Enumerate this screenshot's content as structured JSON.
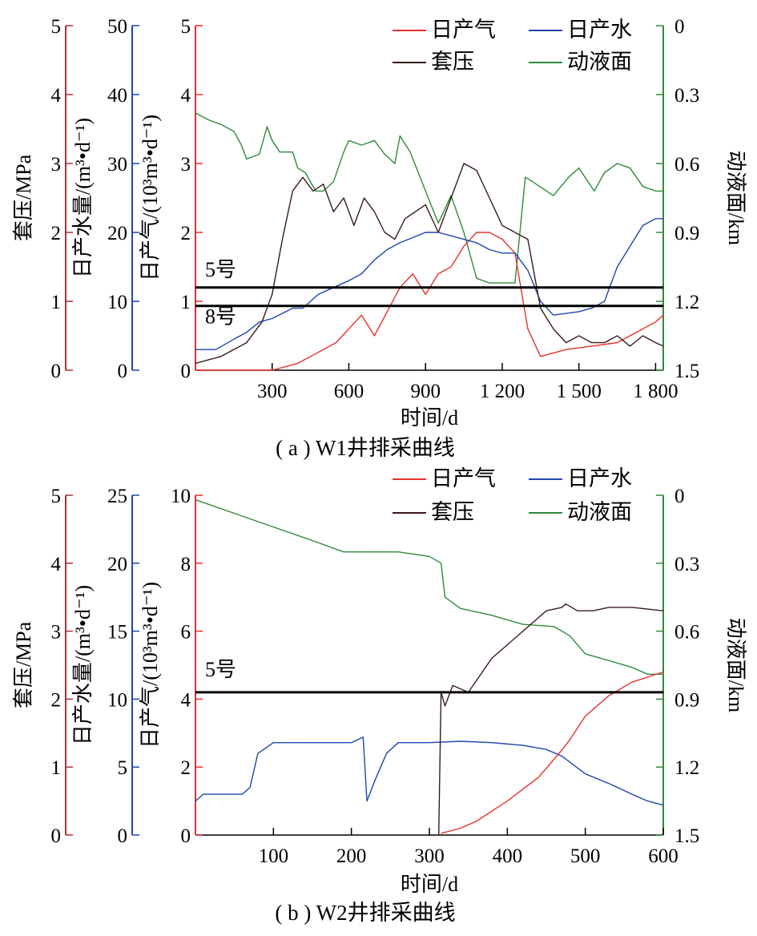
{
  "colors": {
    "gas": "#e8312a",
    "water": "#1f45b0",
    "casing": "#3a1a1a",
    "fluid": "#2e8b3a",
    "casing_axis": "#b03030",
    "water_axis": "#1f45b0",
    "fluid_axis": "#2e8b3a",
    "marker": "#000000"
  },
  "chart_data": [
    {
      "type": "line",
      "caption": "( a ) W1井排采曲线",
      "xlabel": "时间/d",
      "x_ticks": [
        "300",
        "600",
        "900",
        "1 200",
        "1 500",
        "1 800"
      ],
      "xlim": [
        0,
        1830
      ],
      "legend": {
        "gas": "日产气",
        "water": "日产水",
        "casing": "套压",
        "fluid": "动液面",
        "position": "top-right"
      },
      "axes": {
        "casing": {
          "label": "套压/MPa",
          "range": [
            0,
            5
          ],
          "ticks": [
            "0",
            "1",
            "2",
            "3",
            "4",
            "5"
          ]
        },
        "water": {
          "label": "日产水量/(m³•d⁻¹)",
          "range": [
            0,
            50
          ],
          "ticks": [
            "0",
            "10",
            "20",
            "30",
            "40",
            "50"
          ]
        },
        "gas": {
          "label": "日产气/(10³m³•d⁻¹)",
          "range": [
            0,
            5
          ],
          "ticks": [
            "0",
            "1",
            "2",
            "3",
            "4",
            "5"
          ]
        },
        "fluid": {
          "label": "动液面/km",
          "range": [
            0,
            1.5
          ],
          "inverted": true,
          "ticks": [
            "0",
            "0.3",
            "0.6",
            "0.9",
            "1.2",
            "1.5"
          ]
        }
      },
      "markers": [
        {
          "label": "5号",
          "depth_km": 1.14
        },
        {
          "label": "8号",
          "depth_km": 1.22
        }
      ],
      "series": [
        {
          "key": "fluid",
          "x": [
            0,
            50,
            100,
            150,
            180,
            200,
            250,
            280,
            300,
            330,
            380,
            400,
            430,
            470,
            500,
            540,
            580,
            600,
            650,
            700,
            740,
            780,
            800,
            840,
            900,
            950,
            1000,
            1050,
            1100,
            1150,
            1200,
            1250,
            1290,
            1320,
            1400,
            1460,
            1500,
            1560,
            1600,
            1650,
            1700,
            1750,
            1800,
            1830
          ],
          "y": [
            0.38,
            0.41,
            0.43,
            0.46,
            0.52,
            0.58,
            0.56,
            0.44,
            0.5,
            0.55,
            0.55,
            0.62,
            0.64,
            0.72,
            0.72,
            0.68,
            0.55,
            0.5,
            0.52,
            0.5,
            0.56,
            0.6,
            0.48,
            0.55,
            0.72,
            0.86,
            0.74,
            0.9,
            1.1,
            1.12,
            1.12,
            1.12,
            0.66,
            0.68,
            0.74,
            0.66,
            0.62,
            0.72,
            0.64,
            0.6,
            0.62,
            0.7,
            0.72,
            0.72
          ]
        },
        {
          "key": "gas",
          "x": [
            0,
            100,
            300,
            400,
            500,
            550,
            600,
            650,
            700,
            800,
            850,
            900,
            950,
            1000,
            1050,
            1100,
            1150,
            1200,
            1250,
            1300,
            1350,
            1450,
            1550,
            1650,
            1700,
            1750,
            1800,
            1830
          ],
          "y": [
            0,
            0,
            0,
            0.1,
            0.3,
            0.4,
            0.6,
            0.8,
            0.5,
            1.2,
            1.4,
            1.1,
            1.4,
            1.5,
            1.8,
            2.0,
            2.0,
            1.9,
            1.7,
            0.6,
            0.2,
            0.3,
            0.35,
            0.4,
            0.5,
            0.6,
            0.7,
            0.8
          ]
        },
        {
          "key": "water",
          "x": [
            0,
            80,
            150,
            200,
            250,
            300,
            380,
            420,
            480,
            540,
            600,
            650,
            700,
            750,
            800,
            900,
            950,
            1000,
            1050,
            1100,
            1150,
            1200,
            1250,
            1300,
            1350,
            1400,
            1500,
            1550,
            1600,
            1650,
            1700,
            1750,
            1800,
            1830
          ],
          "y": [
            3,
            3,
            4.5,
            5.5,
            7,
            7.5,
            9,
            9,
            11,
            12,
            13,
            14,
            16,
            17.5,
            18.5,
            20,
            20,
            19.5,
            19,
            18.5,
            17.5,
            17,
            17,
            14.5,
            10,
            8,
            8.5,
            9,
            10,
            15,
            18,
            21,
            22,
            22
          ]
        },
        {
          "key": "casing",
          "x": [
            0,
            100,
            200,
            260,
            300,
            340,
            380,
            420,
            460,
            500,
            540,
            580,
            620,
            660,
            700,
            740,
            780,
            820,
            860,
            900,
            950,
            1000,
            1050,
            1100,
            1150,
            1200,
            1250,
            1300,
            1350,
            1400,
            1450,
            1500,
            1550,
            1600,
            1650,
            1700,
            1750,
            1800,
            1830
          ],
          "y": [
            0.1,
            0.2,
            0.4,
            0.7,
            1.1,
            1.9,
            2.6,
            2.8,
            2.6,
            2.7,
            2.3,
            2.5,
            2.1,
            2.5,
            2.3,
            2.0,
            1.9,
            2.2,
            2.3,
            2.4,
            2.0,
            2.5,
            3.0,
            2.9,
            2.5,
            2.1,
            2.0,
            1.9,
            0.9,
            0.6,
            0.4,
            0.5,
            0.4,
            0.4,
            0.5,
            0.35,
            0.5,
            0.4,
            0.35
          ]
        }
      ]
    },
    {
      "type": "line",
      "caption": "( b ) W2井排采曲线",
      "xlabel": "时间/d",
      "x_ticks": [
        "100",
        "200",
        "300",
        "400",
        "500",
        "600"
      ],
      "xlim": [
        0,
        600
      ],
      "legend": {
        "gas": "日产气",
        "water": "日产水",
        "casing": "套压",
        "fluid": "动液面",
        "position": "top-right"
      },
      "axes": {
        "casing": {
          "label": "套压/MPa",
          "range": [
            0,
            5
          ],
          "ticks": [
            "0",
            "1",
            "2",
            "3",
            "4",
            "5"
          ]
        },
        "water": {
          "label": "日产水量/(m³•d⁻¹)",
          "range": [
            0,
            25
          ],
          "ticks": [
            "0",
            "5",
            "10",
            "15",
            "20",
            "25"
          ]
        },
        "gas": {
          "label": "日产气/(10³m³•d⁻¹)",
          "range": [
            0,
            10
          ],
          "ticks": [
            "0",
            "2",
            "4",
            "6",
            "8",
            "10"
          ]
        },
        "fluid": {
          "label": "动液面/km",
          "range": [
            0,
            1.5
          ],
          "inverted": true,
          "ticks": [
            "0",
            "0.3",
            "0.6",
            "0.9",
            "1.2",
            "1.5"
          ]
        }
      },
      "markers": [
        {
          "label": "5号",
          "depth_km": 0.87
        }
      ],
      "series": [
        {
          "key": "fluid",
          "x": [
            0,
            50,
            100,
            150,
            190,
            220,
            260,
            300,
            315,
            320,
            340,
            380,
            420,
            460,
            480,
            500,
            530,
            560,
            580,
            600
          ],
          "y": [
            0.02,
            0.08,
            0.14,
            0.2,
            0.25,
            0.25,
            0.25,
            0.27,
            0.3,
            0.45,
            0.5,
            0.53,
            0.57,
            0.58,
            0.62,
            0.7,
            0.73,
            0.76,
            0.79,
            0.79
          ]
        },
        {
          "key": "water",
          "x": [
            0,
            10,
            20,
            60,
            70,
            80,
            100,
            150,
            200,
            215,
            220,
            230,
            245,
            260,
            280,
            300,
            340,
            380,
            420,
            450,
            470,
            500,
            530,
            560,
            580,
            600
          ],
          "y": [
            2.5,
            3,
            3,
            3,
            3.5,
            6,
            6.8,
            6.8,
            6.8,
            7.2,
            2.5,
            4,
            6,
            6.8,
            6.8,
            6.8,
            6.9,
            6.8,
            6.6,
            6.3,
            5.8,
            4.5,
            3.8,
            3,
            2.5,
            2.2
          ]
        },
        {
          "key": "gas",
          "x": [
            315,
            340,
            360,
            400,
            440,
            470,
            480,
            500,
            530,
            560,
            600
          ],
          "y": [
            0.05,
            0.2,
            0.4,
            1.0,
            1.7,
            2.5,
            2.8,
            3.5,
            4.1,
            4.5,
            4.8
          ]
        },
        {
          "key": "casing",
          "x": [
            312,
            315,
            320,
            330,
            350,
            380,
            400,
            420,
            450,
            470,
            475,
            490,
            510,
            530,
            560,
            600
          ],
          "y": [
            0,
            2.1,
            1.9,
            2.2,
            2.1,
            2.6,
            2.8,
            3.0,
            3.3,
            3.35,
            3.4,
            3.3,
            3.3,
            3.35,
            3.35,
            3.3
          ]
        }
      ]
    }
  ]
}
